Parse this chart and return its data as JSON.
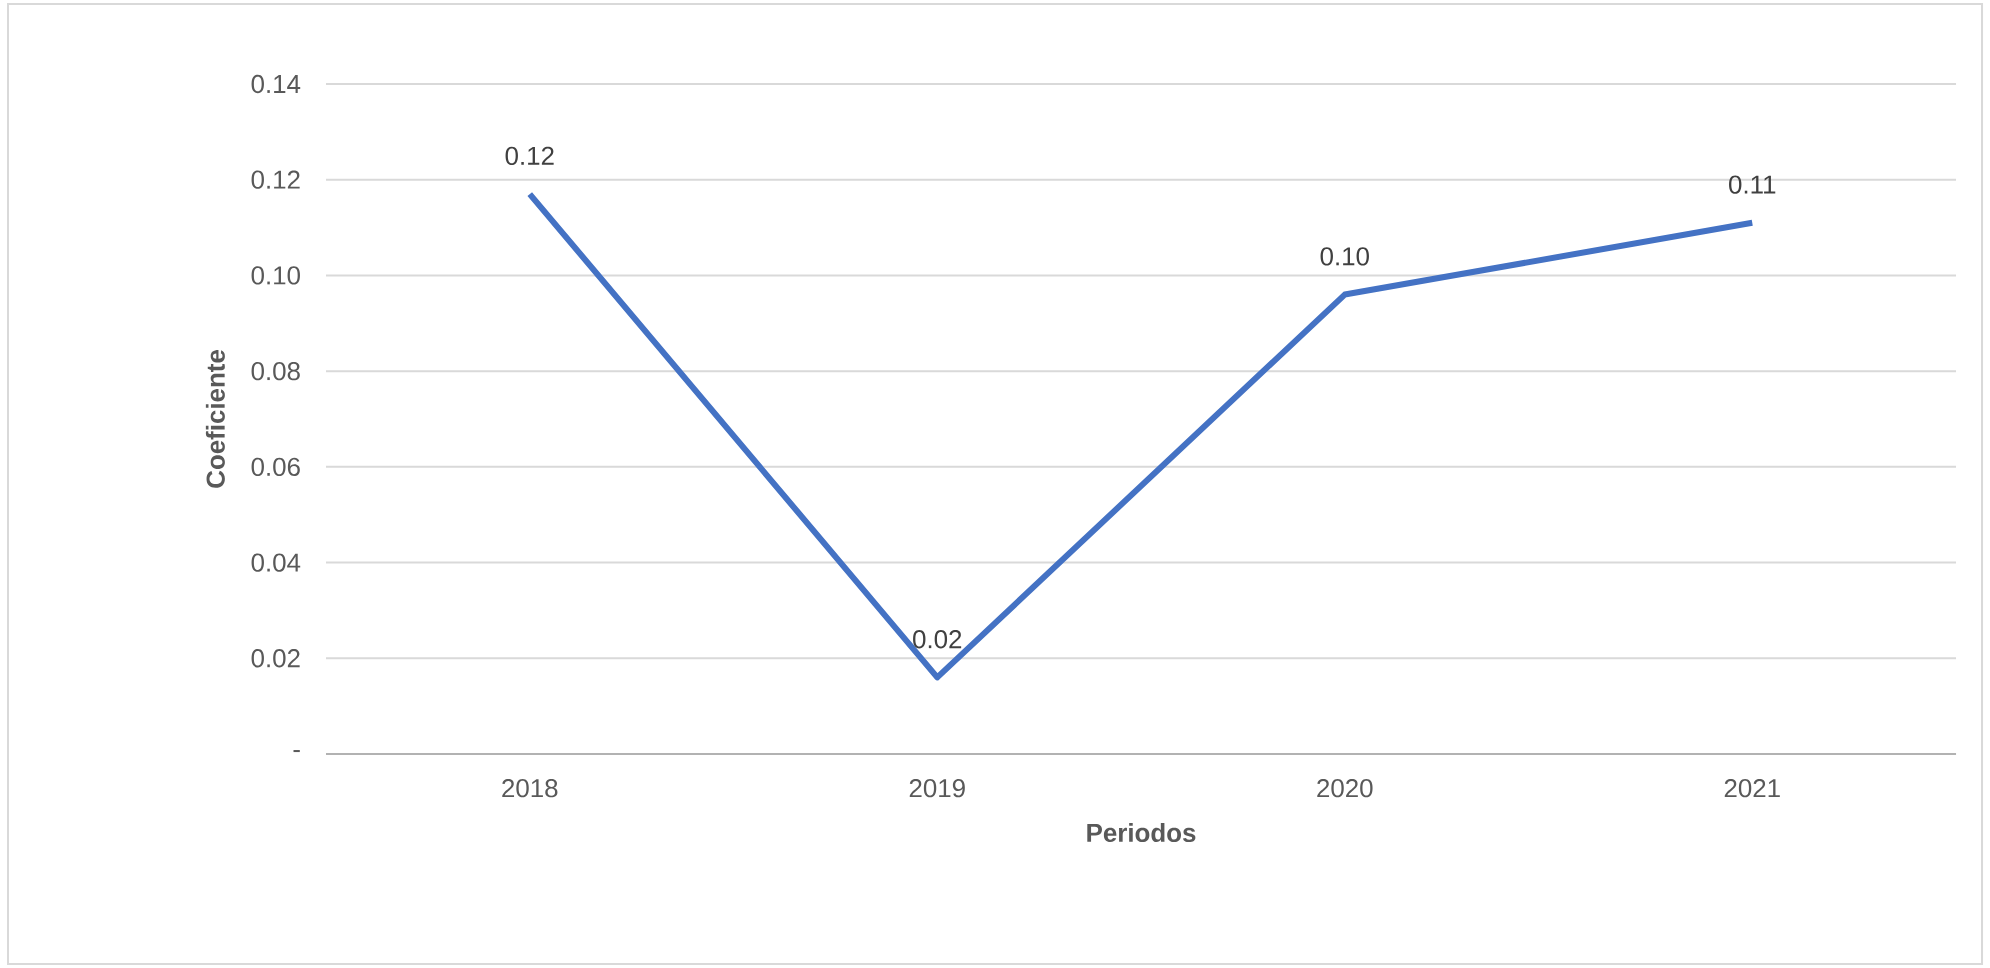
{
  "chart_data": {
    "type": "line",
    "xlabel": "Periodos",
    "ylabel": "Coeficiente",
    "categories": [
      "2018",
      "2019",
      "2020",
      "2021"
    ],
    "series": [
      {
        "color": "#4472c4",
        "values": [
          0.117,
          0.016,
          0.096,
          0.111
        ],
        "value_labels": [
          "0.12",
          "0.02",
          "0.10",
          "0.11"
        ]
      }
    ],
    "ylim": [
      0,
      0.14
    ],
    "yticks": [
      {
        "value": 0,
        "label": "-"
      },
      0.02,
      0.04,
      0.06,
      0.08,
      {
        "value": 0.1,
        "label": "0.10"
      },
      0.12,
      0.14
    ],
    "grid": "y"
  }
}
